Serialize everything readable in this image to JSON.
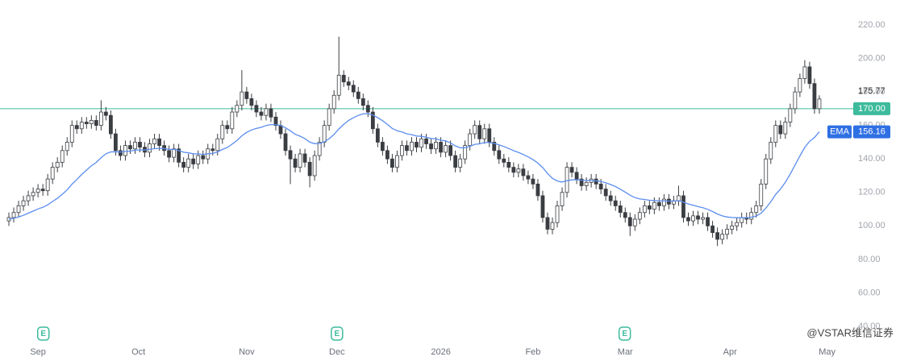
{
  "chart_data": {
    "type": "candlestick",
    "open": [
      103,
      105,
      108,
      112,
      115,
      118,
      120,
      122,
      121,
      128,
      135,
      138,
      145,
      150,
      160,
      158,
      162,
      161,
      163,
      160,
      168,
      166,
      155,
      145,
      142,
      148,
      146,
      150,
      147,
      144,
      149,
      152,
      148,
      145,
      141,
      146,
      138,
      135,
      140,
      137,
      142,
      140,
      146,
      145,
      152,
      160,
      158,
      168,
      172,
      180,
      176,
      172,
      168,
      166,
      170,
      165,
      160,
      155,
      145,
      140,
      135,
      143,
      138,
      130,
      142,
      150,
      160,
      170,
      178,
      190,
      186,
      184,
      180,
      176,
      172,
      168,
      158,
      150,
      145,
      140,
      135,
      142,
      148,
      145,
      150,
      147,
      152,
      149,
      146,
      150,
      144,
      148,
      142,
      135,
      140,
      148,
      155,
      160,
      152,
      158,
      150,
      145,
      140,
      138,
      135,
      132,
      134,
      130,
      128,
      125,
      118,
      105,
      98,
      102,
      112,
      120,
      135,
      132,
      128,
      124,
      126,
      128,
      125,
      122,
      118,
      115,
      112,
      108,
      105,
      100,
      104,
      108,
      112,
      110,
      114,
      112,
      116,
      113,
      115,
      118,
      105,
      103,
      106,
      104,
      105,
      100,
      96,
      92,
      95,
      98,
      100,
      102,
      105,
      104,
      108,
      112,
      125,
      140,
      150,
      160,
      155,
      162,
      170,
      180,
      188,
      195,
      185,
      170
    ],
    "high": [
      108,
      111,
      115,
      118,
      121,
      123,
      125,
      125,
      131,
      138,
      141,
      148,
      153,
      163,
      163,
      165,
      165,
      166,
      166,
      175,
      171,
      169,
      158,
      148,
      151,
      151,
      153,
      153,
      150,
      152,
      155,
      155,
      151,
      148,
      149,
      149,
      141,
      143,
      143,
      145,
      145,
      149,
      149,
      155,
      163,
      163,
      171,
      175,
      193,
      183,
      179,
      175,
      171,
      173,
      173,
      168,
      163,
      158,
      148,
      143,
      146,
      146,
      141,
      145,
      153,
      163,
      173,
      181,
      213,
      193,
      189,
      187,
      183,
      179,
      175,
      171,
      161,
      153,
      148,
      143,
      145,
      151,
      151,
      153,
      153,
      155,
      155,
      152,
      153,
      153,
      151,
      151,
      145,
      143,
      151,
      158,
      163,
      163,
      161,
      161,
      153,
      148,
      143,
      141,
      138,
      137,
      137,
      133,
      131,
      128,
      121,
      108,
      105,
      115,
      123,
      138,
      138,
      135,
      131,
      129,
      131,
      131,
      128,
      125,
      121,
      118,
      115,
      111,
      108,
      107,
      111,
      115,
      115,
      117,
      117,
      119,
      119,
      118,
      124,
      121,
      108,
      109,
      109,
      108,
      108,
      103,
      99,
      98,
      101,
      103,
      105,
      108,
      108,
      111,
      115,
      128,
      143,
      153,
      163,
      163,
      165,
      173,
      183,
      191,
      199,
      198,
      188,
      178
    ],
    "low": [
      100,
      102,
      105,
      109,
      112,
      115,
      117,
      118,
      118,
      125,
      132,
      135,
      142,
      147,
      155,
      155,
      158,
      158,
      157,
      157,
      163,
      152,
      142,
      139,
      139,
      143,
      143,
      144,
      141,
      141,
      146,
      145,
      142,
      138,
      138,
      135,
      132,
      132,
      134,
      134,
      137,
      137,
      142,
      142,
      149,
      155,
      155,
      165,
      169,
      173,
      169,
      165,
      163,
      163,
      162,
      157,
      152,
      142,
      125,
      132,
      132,
      135,
      123,
      127,
      139,
      147,
      157,
      167,
      175,
      183,
      181,
      177,
      173,
      169,
      165,
      155,
      147,
      142,
      137,
      132,
      132,
      139,
      142,
      142,
      144,
      144,
      146,
      143,
      143,
      141,
      141,
      139,
      132,
      132,
      137,
      145,
      152,
      149,
      149,
      147,
      142,
      137,
      135,
      132,
      129,
      129,
      127,
      125,
      122,
      115,
      102,
      95,
      95,
      99,
      109,
      117,
      129,
      125,
      121,
      121,
      123,
      122,
      119,
      115,
      112,
      109,
      105,
      102,
      94,
      97,
      101,
      105,
      107,
      107,
      109,
      109,
      110,
      110,
      112,
      102,
      100,
      100,
      101,
      101,
      97,
      93,
      88,
      89,
      92,
      95,
      97,
      99,
      101,
      101,
      105,
      109,
      122,
      137,
      147,
      152,
      152,
      159,
      167,
      177,
      185,
      182,
      167,
      167
    ],
    "close": [
      105,
      108,
      112,
      115,
      118,
      120,
      122,
      121,
      128,
      135,
      138,
      145,
      150,
      160,
      158,
      162,
      161,
      163,
      160,
      168,
      166,
      155,
      145,
      142,
      148,
      146,
      150,
      147,
      144,
      149,
      152,
      148,
      145,
      141,
      146,
      138,
      135,
      140,
      137,
      142,
      140,
      146,
      145,
      152,
      160,
      158,
      168,
      172,
      180,
      176,
      172,
      168,
      166,
      170,
      165,
      160,
      155,
      145,
      140,
      135,
      143,
      138,
      130,
      142,
      150,
      160,
      170,
      178,
      190,
      186,
      184,
      180,
      176,
      172,
      168,
      158,
      150,
      145,
      140,
      135,
      142,
      148,
      145,
      150,
      147,
      152,
      149,
      146,
      150,
      144,
      148,
      142,
      135,
      140,
      148,
      155,
      160,
      152,
      158,
      150,
      145,
      140,
      138,
      135,
      132,
      134,
      130,
      128,
      125,
      118,
      105,
      98,
      102,
      112,
      120,
      135,
      132,
      128,
      124,
      126,
      128,
      125,
      122,
      118,
      115,
      112,
      108,
      105,
      100,
      104,
      108,
      112,
      110,
      114,
      112,
      116,
      113,
      115,
      118,
      105,
      103,
      106,
      104,
      105,
      100,
      96,
      92,
      95,
      98,
      100,
      102,
      105,
      104,
      108,
      112,
      125,
      140,
      150,
      160,
      155,
      162,
      170,
      180,
      188,
      195,
      185,
      170,
      175.77
    ],
    "ema": {
      "name": "EMA",
      "color": "#5b8def",
      "values": [
        104,
        104.5,
        105.3,
        106.3,
        107.6,
        108.8,
        110.1,
        111.1,
        112.6,
        114.6,
        116.5,
        118.9,
        121.5,
        124.9,
        127.7,
        130.7,
        133.3,
        135.9,
        137.9,
        140.8,
        143.1,
        144.2,
        144.3,
        144.1,
        144.5,
        144.7,
        145.2,
        145.4,
        145.3,
        145.7,
        146.1,
        146.3,
        146.2,
        145.7,
        145.7,
        145,
        144,
        143.6,
        143.1,
        143,
        142.7,
        143.1,
        143.3,
        144.2,
        145.7,
        146.8,
        148.8,
        151,
        153.8,
        155.9,
        157.3,
        158.2,
        158.9,
        160,
        160.5,
        160.5,
        160,
        158.6,
        156.8,
        154.7,
        153.6,
        152.1,
        150,
        149.1,
        149.2,
        150.2,
        152.1,
        154.6,
        157.9,
        160.6,
        163,
        164.6,
        166,
        166.9,
        167.1,
        166.2,
        164.7,
        162.8,
        160.6,
        158.2,
        156.8,
        156.1,
        155,
        154.5,
        153.7,
        153.5,
        153,
        152.2,
        152,
        151.2,
        150.8,
        149.6,
        147.8,
        146.6,
        146.7,
        147.5,
        148.7,
        149,
        149.8,
        149.8,
        149.3,
        148.4,
        147.4,
        146.2,
        144.9,
        143.9,
        142.6,
        141.2,
        139.6,
        137.5,
        134.8,
        131.3,
        128.4,
        126.8,
        126.2,
        127,
        127.5,
        127.6,
        127.3,
        127.1,
        127.1,
        126.9,
        126.5,
        125.7,
        124.7,
        123.5,
        121.9,
        120.2,
        118.3,
        116.9,
        116.1,
        115.8,
        115.3,
        115.2,
        114.9,
        115,
        114.8,
        114.8,
        115.1,
        114.1,
        113.1,
        112.4,
        111.5,
        110.9,
        109.9,
        108.6,
        107.1,
        106,
        105.3,
        105,
        104.9,
        104.9,
        104.8,
        105.2,
        105.9,
        107.6,
        110.7,
        114.4,
        118.8,
        122,
        126,
        131,
        136.4,
        141.8,
        146.9,
        150.5,
        152.8,
        156.16
      ]
    },
    "up_color": "#ffffff",
    "down_color": "#3a3d42",
    "wick_color": "#3a3d42",
    "hline": {
      "value": 170,
      "label": "170.00",
      "color": "#3dbb9c"
    },
    "events": [
      {
        "x": 7.1,
        "label": "E"
      },
      {
        "x": 67.6,
        "label": "E"
      },
      {
        "x": 126.9,
        "label": "E"
      }
    ],
    "xlim": [
      -1,
      169
    ],
    "xticks": [
      {
        "value": 6,
        "label": "Sep"
      },
      {
        "value": 26.7,
        "label": "Oct"
      },
      {
        "value": 49,
        "label": "Nov"
      },
      {
        "value": 67.6,
        "label": "Dec"
      },
      {
        "value": 89,
        "label": "2026"
      },
      {
        "value": 108,
        "label": "Feb"
      },
      {
        "value": 127,
        "label": "Mar"
      },
      {
        "value": 148.6,
        "label": "Apr"
      },
      {
        "value": 168.6,
        "label": "May"
      }
    ],
    "ylim": [
      40,
      220
    ],
    "yticks": [
      {
        "value": 40,
        "label": "40.00"
      },
      {
        "value": 60,
        "label": "60.00"
      },
      {
        "value": 80,
        "label": "80.00"
      },
      {
        "value": 100,
        "label": "100.00"
      },
      {
        "value": 120,
        "label": "120.00"
      },
      {
        "value": 140,
        "label": "140.00"
      },
      {
        "value": 160,
        "label": "160.00"
      },
      {
        "value": 180,
        "label": "180.00"
      },
      {
        "value": 200,
        "label": "200.00"
      },
      {
        "value": 220,
        "label": "220.00"
      }
    ],
    "watermark": "@VSTAR维信证券"
  }
}
